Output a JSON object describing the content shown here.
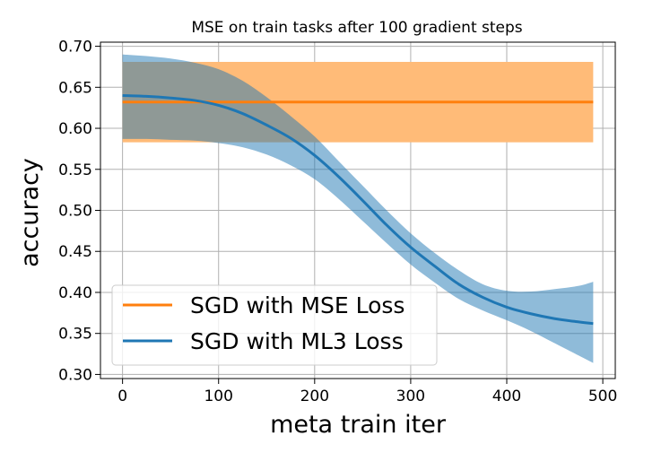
{
  "chart_data": {
    "type": "line",
    "title": "MSE on train tasks after 100 gradient steps",
    "xlabel": "meta train iter",
    "ylabel": "accuracy",
    "xlim": [
      -23,
      513
    ],
    "ylim": [
      0.295,
      0.705
    ],
    "xticks": [
      0,
      100,
      200,
      300,
      400,
      500
    ],
    "yticks": [
      0.3,
      0.35,
      0.4,
      0.45,
      0.5,
      0.55,
      0.6,
      0.65,
      0.7
    ],
    "grid": true,
    "legend_position": "lower-left",
    "series": [
      {
        "name": "SGD with MSE Loss",
        "color": "#ff7f0e",
        "fill_color": "#ffbb78",
        "x": [
          0,
          490
        ],
        "mean": [
          0.632,
          0.632
        ],
        "lower": [
          0.583,
          0.583
        ],
        "upper": [
          0.681,
          0.681
        ]
      },
      {
        "name": "SGD with ML3 Loss",
        "color": "#1f77b4",
        "fill_color": "#1f77b4",
        "x": [
          0,
          25,
          50,
          75,
          100,
          125,
          150,
          175,
          200,
          225,
          250,
          275,
          300,
          325,
          350,
          375,
          400,
          425,
          450,
          475,
          490
        ],
        "mean": [
          0.64,
          0.639,
          0.637,
          0.634,
          0.628,
          0.618,
          0.604,
          0.588,
          0.567,
          0.541,
          0.512,
          0.482,
          0.455,
          0.432,
          0.41,
          0.394,
          0.382,
          0.374,
          0.368,
          0.364,
          0.362
        ],
        "lower": [
          0.587,
          0.587,
          0.586,
          0.585,
          0.582,
          0.577,
          0.568,
          0.555,
          0.538,
          0.514,
          0.487,
          0.46,
          0.434,
          0.412,
          0.392,
          0.378,
          0.366,
          0.353,
          0.338,
          0.323,
          0.314
        ],
        "upper": [
          0.69,
          0.688,
          0.685,
          0.68,
          0.672,
          0.658,
          0.638,
          0.615,
          0.59,
          0.56,
          0.53,
          0.5,
          0.472,
          0.448,
          0.427,
          0.41,
          0.402,
          0.401,
          0.404,
          0.408,
          0.413
        ]
      }
    ]
  }
}
